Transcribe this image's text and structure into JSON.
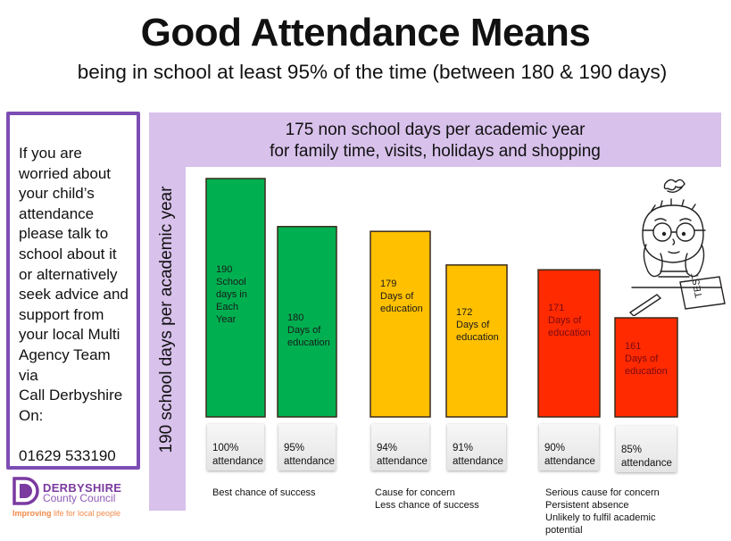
{
  "header": {
    "title": "Good Attendance Means",
    "subtitle": "being in school at least 95% of the time (between 180 & 190 days)"
  },
  "sidebar": {
    "text": "If you are\nworried about\nyour child’s\nattendance\nplease talk to\nschool about it\nor alternatively\nseek advice and\nsupport from\nyour local Multi\nAgency Team\nvia\nCall Derbyshire\nOn:\n\n01629 533190",
    "phone": "01629 533190"
  },
  "logo": {
    "line1": "DERBYSHIRE",
    "line2": "County Council",
    "tagline_bold": "Improving",
    "tagline_rest": " life for local people"
  },
  "band": {
    "line1": "175 non school days per academic  year",
    "line2": "for family time, visits, holidays and shopping",
    "color": "#d8c1eb"
  },
  "illustration": "worried-student-with-test-icon",
  "chart_data": {
    "type": "bar",
    "title": "175 non school days per academic year for family time, visits, holidays and shopping",
    "ylabel": "190 school days per academic year",
    "xlabel": "",
    "ylim": [
      0,
      190
    ],
    "grid": false,
    "categories": [
      "100% attendance",
      "95% attendance",
      "94% attendance",
      "91% attendance",
      "90% attendance",
      "85% attendance"
    ],
    "values": [
      190,
      180,
      179,
      172,
      171,
      161
    ],
    "bars": [
      {
        "value": 190,
        "label": "190\nSchool\ndays in\nEach\nYear",
        "attendance": "100%\nattendance",
        "color": "#00b050",
        "label_color": "#1a1a1a"
      },
      {
        "value": 180,
        "label": "180\nDays of\neducation",
        "attendance": "95%\nattendance",
        "color": "#00b050",
        "label_color": "#1a1a1a"
      },
      {
        "value": 179,
        "label": "179\nDays of\neducation",
        "attendance": "94%\nattendance",
        "color": "#ffc000",
        "label_color": "#1a1a1a"
      },
      {
        "value": 172,
        "label": "172\nDays of\neducation",
        "attendance": "91%\nattendance",
        "color": "#ffc000",
        "label_color": "#1a1a1a"
      },
      {
        "value": 171,
        "label": "171\nDays of\neducation",
        "attendance": "90%\nattendance",
        "color": "#ff2a00",
        "label_color": "#7a0a12"
      },
      {
        "value": 161,
        "label": "161\nDays of\neducation",
        "attendance": "85%\nattendance",
        "color": "#ff2a00",
        "label_color": "#7a0a12"
      }
    ],
    "annotations": [
      {
        "text": "Best chance of success",
        "group": "green"
      },
      {
        "text": "Cause for concern\nLess chance of success",
        "group": "amber"
      },
      {
        "text": "Serious cause for concern\nPersistent absence\nUnlikely to fulfil academic\npotential",
        "group": "red"
      }
    ]
  }
}
